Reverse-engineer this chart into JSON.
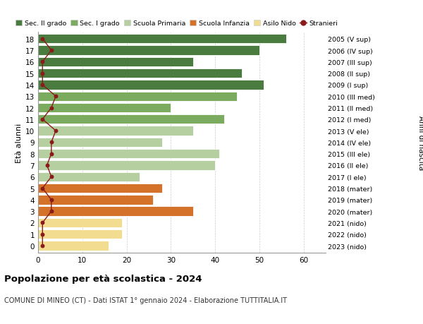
{
  "ages": [
    18,
    17,
    16,
    15,
    14,
    13,
    12,
    11,
    10,
    9,
    8,
    7,
    6,
    5,
    4,
    3,
    2,
    1,
    0
  ],
  "years": [
    "2005 (V sup)",
    "2006 (IV sup)",
    "2007 (III sup)",
    "2008 (II sup)",
    "2009 (I sup)",
    "2010 (III med)",
    "2011 (II med)",
    "2012 (I med)",
    "2013 (V ele)",
    "2014 (IV ele)",
    "2015 (III ele)",
    "2016 (II ele)",
    "2017 (I ele)",
    "2018 (mater)",
    "2019 (mater)",
    "2020 (mater)",
    "2021 (nido)",
    "2022 (nido)",
    "2023 (nido)"
  ],
  "bar_values": [
    56,
    50,
    35,
    46,
    51,
    45,
    30,
    42,
    35,
    28,
    41,
    40,
    23,
    28,
    26,
    35,
    19,
    19,
    16
  ],
  "bar_colors": [
    "#4a7c3f",
    "#4a7c3f",
    "#4a7c3f",
    "#4a7c3f",
    "#4a7c3f",
    "#7aab5e",
    "#7aab5e",
    "#7aab5e",
    "#b5cfa0",
    "#b5cfa0",
    "#b5cfa0",
    "#b5cfa0",
    "#b5cfa0",
    "#d4722a",
    "#d4722a",
    "#d4722a",
    "#f2dc90",
    "#f2dc90",
    "#f2dc90"
  ],
  "stranieri_values": [
    1,
    3,
    1,
    1,
    1,
    4,
    3,
    1,
    4,
    3,
    3,
    2,
    3,
    1,
    3,
    3,
    1,
    1,
    1
  ],
  "stranieri_color": "#8b1a1a",
  "legend_labels": [
    "Sec. II grado",
    "Sec. I grado",
    "Scuola Primaria",
    "Scuola Infanzia",
    "Asilo Nido",
    "Stranieri"
  ],
  "legend_colors": [
    "#4a7c3f",
    "#7aab5e",
    "#b5cfa0",
    "#d4722a",
    "#f2dc90",
    "#8b1a1a"
  ],
  "title": "Popolazione per età scolastica - 2024",
  "subtitle": "COMUNE DI MINEO (CT) - Dati ISTAT 1° gennaio 2024 - Elaborazione TUTTITALIA.IT",
  "ylabel_left": "Età alunni",
  "ylabel_right": "Anni di nascita",
  "xlim": [
    0,
    65
  ],
  "background_color": "#ffffff",
  "grid_color": "#cccccc",
  "bar_height": 0.82
}
